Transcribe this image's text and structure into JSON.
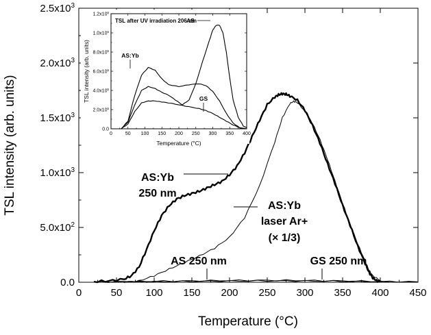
{
  "chart_data": [
    {
      "type": "line",
      "title": "",
      "xlabel": "Temperature (°C)",
      "ylabel": "TSL intensity (arb. units)",
      "xlim": [
        0,
        450
      ],
      "ylim": [
        0,
        2500
      ],
      "x_ticks": [
        0,
        50,
        100,
        150,
        200,
        250,
        300,
        350,
        400,
        450
      ],
      "y_ticks": [
        0,
        500,
        1000,
        1500,
        2000,
        2500
      ],
      "y_tick_labels": [
        {
          "base": "0.0",
          "exp": ""
        },
        {
          "base": "5.0x10",
          "exp": "2"
        },
        {
          "base": "1.0x10",
          "exp": "3"
        },
        {
          "base": "1.5x10",
          "exp": "3"
        },
        {
          "base": "2.0x10",
          "exp": "3"
        },
        {
          "base": "2.5x10",
          "exp": "3"
        }
      ],
      "grid": false,
      "series": [
        {
          "name": "AS:Yb 250 nm",
          "style": "thick",
          "x": [
            20,
            40,
            60,
            70,
            80,
            90,
            100,
            110,
            120,
            130,
            140,
            150,
            160,
            170,
            180,
            190,
            200,
            210,
            220,
            230,
            240,
            250,
            260,
            265,
            270,
            275,
            280,
            290,
            300,
            310,
            320,
            330,
            340,
            350,
            360,
            370,
            380,
            385,
            390,
            395,
            400
          ],
          "y": [
            5,
            12,
            28,
            60,
            140,
            300,
            470,
            610,
            700,
            760,
            790,
            810,
            830,
            860,
            890,
            920,
            980,
            1060,
            1180,
            1330,
            1480,
            1620,
            1690,
            1710,
            1720,
            1715,
            1700,
            1660,
            1570,
            1430,
            1270,
            1080,
            900,
            700,
            520,
            330,
            170,
            90,
            40,
            15,
            5
          ]
        },
        {
          "name": "AS:Yb laser Ar+ (× 1/3)",
          "style": "thin",
          "x": [
            60,
            80,
            100,
            120,
            140,
            160,
            180,
            200,
            220,
            240,
            260,
            270,
            280,
            285,
            290,
            300,
            310,
            320,
            330,
            340,
            350,
            360,
            370,
            380,
            385,
            390,
            400
          ],
          "y": [
            2,
            12,
            60,
            120,
            180,
            240,
            310,
            410,
            590,
            880,
            1280,
            1500,
            1630,
            1650,
            1640,
            1560,
            1450,
            1300,
            1120,
            920,
            720,
            530,
            350,
            190,
            110,
            60,
            15
          ]
        },
        {
          "name": "AS 250 nm",
          "style": "thin",
          "x": [
            20,
            60,
            100,
            150,
            200,
            250,
            300,
            350,
            400,
            450
          ],
          "y": [
            3,
            6,
            9,
            13,
            16,
            18,
            16,
            12,
            7,
            4
          ]
        },
        {
          "name": "GS 250 nm",
          "style": "thin",
          "x": [
            20,
            60,
            100,
            150,
            200,
            250,
            300,
            350,
            400,
            450
          ],
          "y": [
            1,
            3,
            5,
            8,
            11,
            13,
            12,
            9,
            5,
            2
          ]
        }
      ],
      "annotations": [
        {
          "lines": [
            "AS:Yb",
            "250 nm"
          ]
        },
        {
          "lines": [
            "AS:Yb",
            "laser Ar+",
            "(× 1/3)"
          ]
        },
        {
          "lines": [
            "AS 250 nm"
          ]
        },
        {
          "lines": [
            "GS 250 nm"
          ]
        }
      ]
    },
    {
      "type": "line",
      "title": "TSL after UV irradiation 206 nm",
      "xlabel": "Temperature (°C)",
      "ylabel": "TSL intensity (arb. units)",
      "xlim": [
        0,
        400
      ],
      "ylim": [
        0,
        1200000
      ],
      "x_ticks": [
        0,
        50,
        100,
        150,
        200,
        250,
        300,
        350,
        400
      ],
      "y_ticks": [
        0,
        200000,
        400000,
        600000,
        800000,
        1000000,
        1200000
      ],
      "y_tick_labels": [
        {
          "base": "0.0",
          "exp": ""
        },
        {
          "base": "2.0x10",
          "exp": "5"
        },
        {
          "base": "4.0x10",
          "exp": "5"
        },
        {
          "base": "6.0x10",
          "exp": "5"
        },
        {
          "base": "8.0x10",
          "exp": "5"
        },
        {
          "base": "1.0x10",
          "exp": "6"
        },
        {
          "base": "1.2x10",
          "exp": "6"
        }
      ],
      "series": [
        {
          "name": "AS:Yb",
          "x": [
            30,
            50,
            70,
            90,
            110,
            130,
            150,
            170,
            200,
            230,
            260,
            280,
            300,
            320,
            340,
            360,
            380,
            400
          ],
          "y": [
            0,
            80000,
            350000,
            560000,
            640000,
            610000,
            520000,
            460000,
            440000,
            460000,
            470000,
            450000,
            390000,
            290000,
            160000,
            60000,
            10000,
            0
          ]
        },
        {
          "name": "AS",
          "x": [
            30,
            50,
            70,
            90,
            110,
            130,
            150,
            170,
            190,
            210,
            230,
            250,
            270,
            290,
            300,
            310,
            320,
            330,
            340,
            350,
            360,
            375,
            390,
            400
          ],
          "y": [
            0,
            70000,
            250000,
            400000,
            440000,
            420000,
            380000,
            350000,
            300000,
            250000,
            300000,
            470000,
            700000,
            920000,
            1030000,
            1080000,
            1080000,
            1000000,
            800000,
            530000,
            300000,
            120000,
            30000,
            10000
          ]
        },
        {
          "name": "GS",
          "x": [
            30,
            50,
            70,
            90,
            110,
            130,
            150,
            170,
            200,
            230,
            260,
            280,
            300,
            320,
            340,
            360,
            380,
            400
          ],
          "y": [
            0,
            50000,
            180000,
            270000,
            290000,
            290000,
            280000,
            270000,
            250000,
            230000,
            210000,
            190000,
            160000,
            120000,
            80000,
            40000,
            10000,
            0
          ]
        }
      ],
      "annotations": [
        {
          "lines": [
            "AS:Yb"
          ]
        },
        {
          "lines": [
            "AS"
          ]
        },
        {
          "lines": [
            "GS"
          ]
        }
      ]
    }
  ]
}
